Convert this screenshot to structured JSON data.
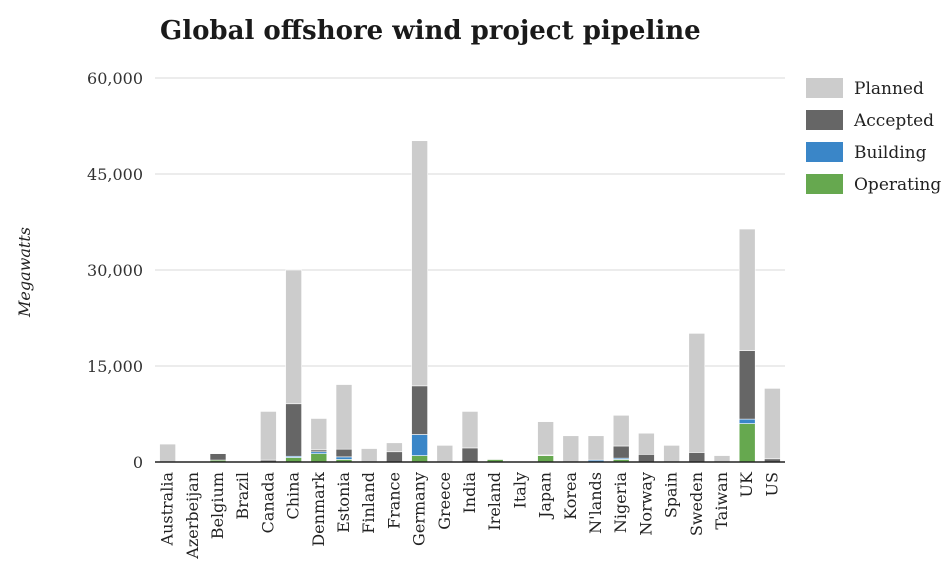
{
  "chart_data": {
    "type": "bar",
    "stacked": true,
    "title": "Global offshore wind project pipeline",
    "xlabel": "",
    "ylabel": "Megawatts",
    "ylim": [
      0,
      60000
    ],
    "yticks": [
      "0",
      "15,000",
      "30,000",
      "45,000",
      "60,000"
    ],
    "ytick_values": [
      0,
      15000,
      30000,
      45000,
      60000
    ],
    "grid": true,
    "legend_position": "right",
    "categories": [
      "Australia",
      "Azerbeijan",
      "Belgium",
      "Brazil",
      "Canada",
      "China",
      "Denmark",
      "Estonia",
      "Finland",
      "France",
      "Germany",
      "Greece",
      "India",
      "Ireland",
      "Italy",
      "Japan",
      "Korea",
      "N'lands",
      "Nigeria",
      "Norway",
      "Spain",
      "Sweden",
      "Taiwan",
      "UK",
      "US"
    ],
    "series": [
      {
        "name": "Operating",
        "color": "#66a84f",
        "values": [
          0,
          0,
          300,
          0,
          0,
          700,
          1300,
          400,
          0,
          0,
          1000,
          0,
          0,
          400,
          0,
          1000,
          0,
          0,
          400,
          0,
          0,
          0,
          0,
          6000,
          0
        ]
      },
      {
        "name": "Building",
        "color": "#3a86c8",
        "values": [
          0,
          0,
          0,
          0,
          0,
          200,
          300,
          400,
          0,
          0,
          3300,
          0,
          0,
          0,
          0,
          0,
          0,
          300,
          200,
          0,
          0,
          0,
          0,
          700,
          0
        ]
      },
      {
        "name": "Accepted",
        "color": "#666666",
        "values": [
          0,
          0,
          1000,
          0,
          300,
          8200,
          300,
          1200,
          0,
          1600,
          7600,
          0,
          2200,
          100,
          0,
          100,
          0,
          0,
          1900,
          1200,
          0,
          1500,
          0,
          10700,
          500
        ]
      },
      {
        "name": "Planned",
        "color": "#cccccc",
        "values": [
          2800,
          0,
          0,
          0,
          7600,
          20900,
          4900,
          10100,
          2100,
          1400,
          38300,
          2600,
          5700,
          100,
          0,
          5200,
          4100,
          3800,
          4800,
          3300,
          2600,
          18600,
          1000,
          19000,
          11000
        ]
      }
    ],
    "legend_order": [
      "Planned",
      "Accepted",
      "Building",
      "Operating"
    ]
  }
}
